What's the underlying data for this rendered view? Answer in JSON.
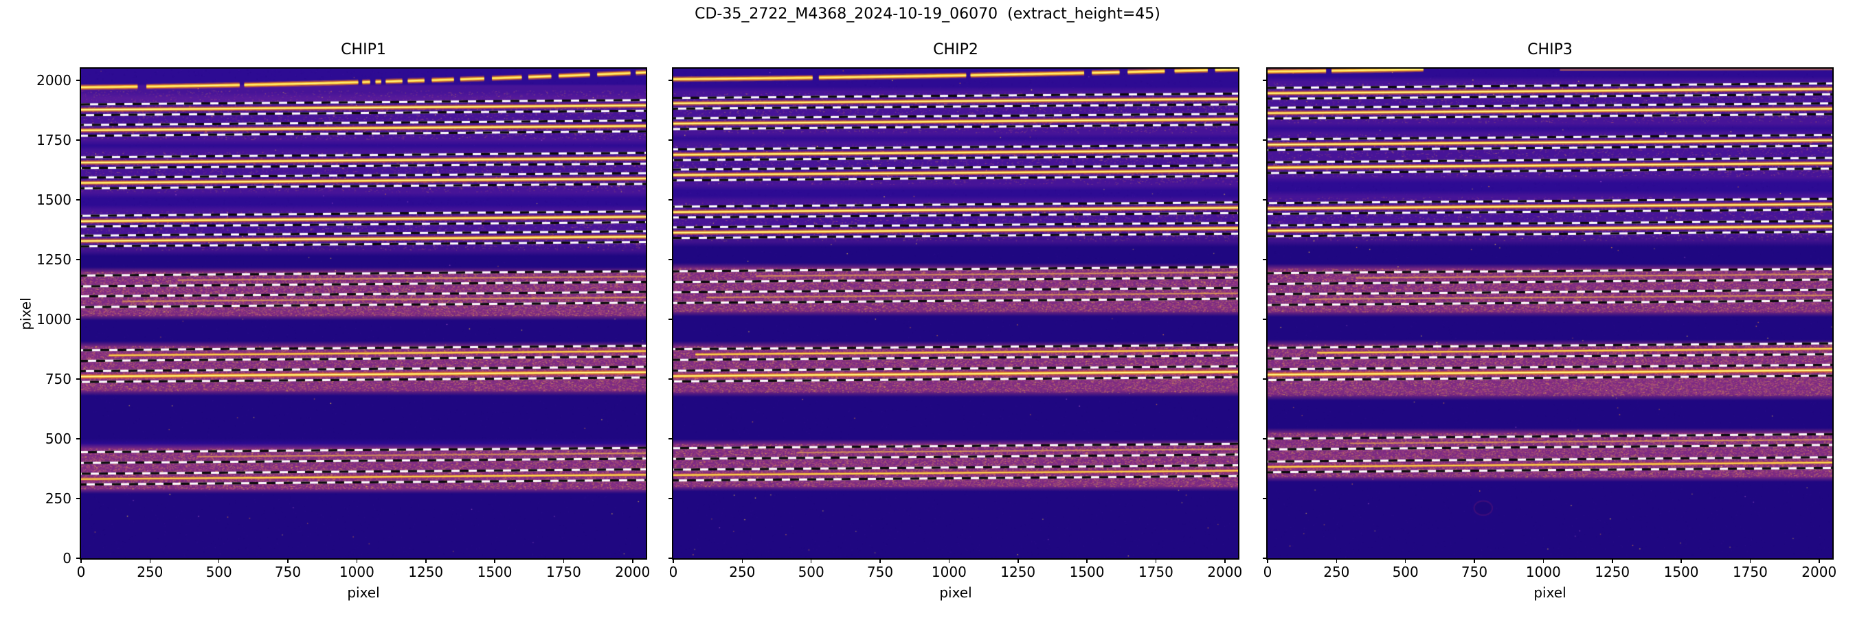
{
  "title": "CD-35_2722_M4368_2024-10-19_06070  (extract_height=45)",
  "axes": {
    "xlabel": "pixel",
    "ylabel": "pixel",
    "xticks": [
      0,
      250,
      500,
      750,
      1000,
      1250,
      1500,
      1750,
      2000
    ],
    "yticks": [
      0,
      250,
      500,
      750,
      1000,
      1250,
      1500,
      1750,
      2000
    ],
    "xlim": [
      0,
      2048
    ],
    "ylim": [
      0,
      2048
    ]
  },
  "colors": {
    "background": "#2D0B93",
    "pink_band": "#8A3080",
    "glow_band": "#6E23A0",
    "dark_band": "#160573",
    "trace_core": "#FFE94E",
    "trace_glow": "#E86628",
    "dash_white": "#FFFFFF",
    "dash_black": "#000000",
    "spine": "#000000",
    "grain_palette": [
      "#d4756a",
      "#c75a6f",
      "#b8468a",
      "#e08a50",
      "#cc5f7d",
      "#daa055",
      "#e8b84a",
      "#a93d90"
    ]
  },
  "chart_data": {
    "type": "heatmap",
    "colormap": "plasma",
    "extract_height": 45,
    "trace_slope": 0.009,
    "panels": [
      {
        "title": "CHIP1",
        "seed": 11,
        "orders": [
          {
            "y": 1876,
            "b": "bright"
          },
          {
            "y": 1790,
            "b": "bright"
          },
          {
            "y": 1655,
            "b": "bright"
          },
          {
            "y": 1570,
            "b": "bright"
          },
          {
            "y": 1410,
            "b": "bright"
          },
          {
            "y": 1327,
            "b": "bright"
          },
          {
            "y": 1160,
            "b": "faint",
            "x0": 350
          },
          {
            "y": 1073,
            "b": "faint",
            "x0": 150
          },
          {
            "y": 848,
            "b": "medium",
            "x0": 100
          },
          {
            "y": 760,
            "b": "bright"
          },
          {
            "y": 421,
            "b": "faint",
            "x0": 420
          },
          {
            "y": 331,
            "b": "medium"
          }
        ],
        "pink_bands": [
          [
            1015,
            1198
          ],
          [
            700,
            888
          ],
          [
            290,
            460
          ]
        ],
        "glow_bands": [
          [
            1928,
            1958
          ],
          [
            1752,
            1922
          ],
          [
            1532,
            1700
          ],
          [
            1290,
            1452
          ]
        ],
        "dark_bands": [
          [
            0,
            280
          ],
          [
            505,
            690
          ],
          [
            895,
            1008
          ],
          [
            1205,
            1285
          ]
        ],
        "arc": {
          "y0": 1970,
          "a": 0.012,
          "b": 9e-06,
          "segments": [
            [
              0,
              205
            ],
            [
              237,
              575
            ],
            [
              592,
              1005
            ],
            [
              1020,
              1048
            ],
            [
              1068,
              1088
            ],
            [
              1105,
              1165
            ],
            [
              1185,
              1245
            ],
            [
              1272,
              1352
            ],
            [
              1375,
              1462
            ],
            [
              1490,
              1598
            ],
            [
              1622,
              1705
            ],
            [
              1732,
              1845
            ],
            [
              1872,
              1992
            ],
            [
              2012,
              2048
            ]
          ]
        }
      },
      {
        "title": "CHIP2",
        "seed": 22,
        "orders": [
          {
            "y": 1903,
            "b": "bright"
          },
          {
            "y": 1818,
            "b": "bright"
          },
          {
            "y": 1688,
            "b": "bright"
          },
          {
            "y": 1603,
            "b": "bright"
          },
          {
            "y": 1448,
            "b": "bright"
          },
          {
            "y": 1362,
            "b": "bright"
          },
          {
            "y": 1178,
            "b": "faint",
            "x0": 300
          },
          {
            "y": 1090,
            "b": "faint",
            "x0": 120
          },
          {
            "y": 852,
            "b": "medium",
            "x0": 80
          },
          {
            "y": 762,
            "b": "bright"
          },
          {
            "y": 438,
            "b": "faint",
            "x0": 450
          },
          {
            "y": 348,
            "b": "medium"
          }
        ],
        "pink_bands": [
          [
            1032,
            1215
          ],
          [
            695,
            888
          ],
          [
            300,
            478
          ]
        ],
        "glow_bands": [
          [
            1780,
            1948
          ],
          [
            1565,
            1732
          ],
          [
            1328,
            1490
          ]
        ],
        "dark_bands": [
          [
            0,
            290
          ],
          [
            500,
            688
          ],
          [
            892,
            1025
          ],
          [
            1218,
            1322
          ]
        ],
        "arc": {
          "y0": 2004,
          "a": 0.01,
          "b": 5e-06,
          "segments": [
            [
              0,
              505
            ],
            [
              528,
              1062
            ],
            [
              1078,
              1490
            ],
            [
              1518,
              1618
            ],
            [
              1648,
              1782
            ],
            [
              1818,
              1938
            ],
            [
              1965,
              2048
            ]
          ]
        }
      },
      {
        "title": "CHIP3",
        "seed": 33,
        "orders": [
          {
            "y": 1945,
            "b": "bright"
          },
          {
            "y": 1862,
            "b": "bright"
          },
          {
            "y": 1730,
            "b": "bright"
          },
          {
            "y": 1634,
            "b": "bright"
          },
          {
            "y": 1463,
            "b": "bright"
          },
          {
            "y": 1370,
            "b": "bright"
          },
          {
            "y": 1170,
            "b": "faint",
            "x0": 320
          },
          {
            "y": 1082,
            "b": "faint",
            "x0": 150
          },
          {
            "y": 858,
            "b": "medium",
            "x0": 180
          },
          {
            "y": 768,
            "b": "bright"
          },
          {
            "y": 478,
            "b": "faint",
            "x0": 300
          },
          {
            "y": 382,
            "b": "medium"
          }
        ],
        "pink_bands": [
          [
            1030,
            1212
          ],
          [
            680,
            895
          ],
          [
            340,
            525
          ]
        ],
        "glow_bands": [
          [
            1822,
            1990
          ],
          [
            1596,
            1775
          ],
          [
            1330,
            1512
          ]
        ],
        "dark_bands": [
          [
            0,
            330
          ],
          [
            530,
            672
          ],
          [
            900,
            1022
          ],
          [
            1218,
            1325
          ]
        ],
        "arc": {
          "y0": 2036,
          "a": 0.012,
          "b": 9e-06,
          "segments": [
            [
              0,
              212
            ],
            [
              232,
              565
            ]
          ]
        },
        "edge_line": {
          "y": 2043,
          "x0": 1060,
          "x1": 2048
        },
        "blob": {
          "x": 782,
          "y": 210,
          "rx": 33,
          "ry": 30
        }
      }
    ]
  }
}
